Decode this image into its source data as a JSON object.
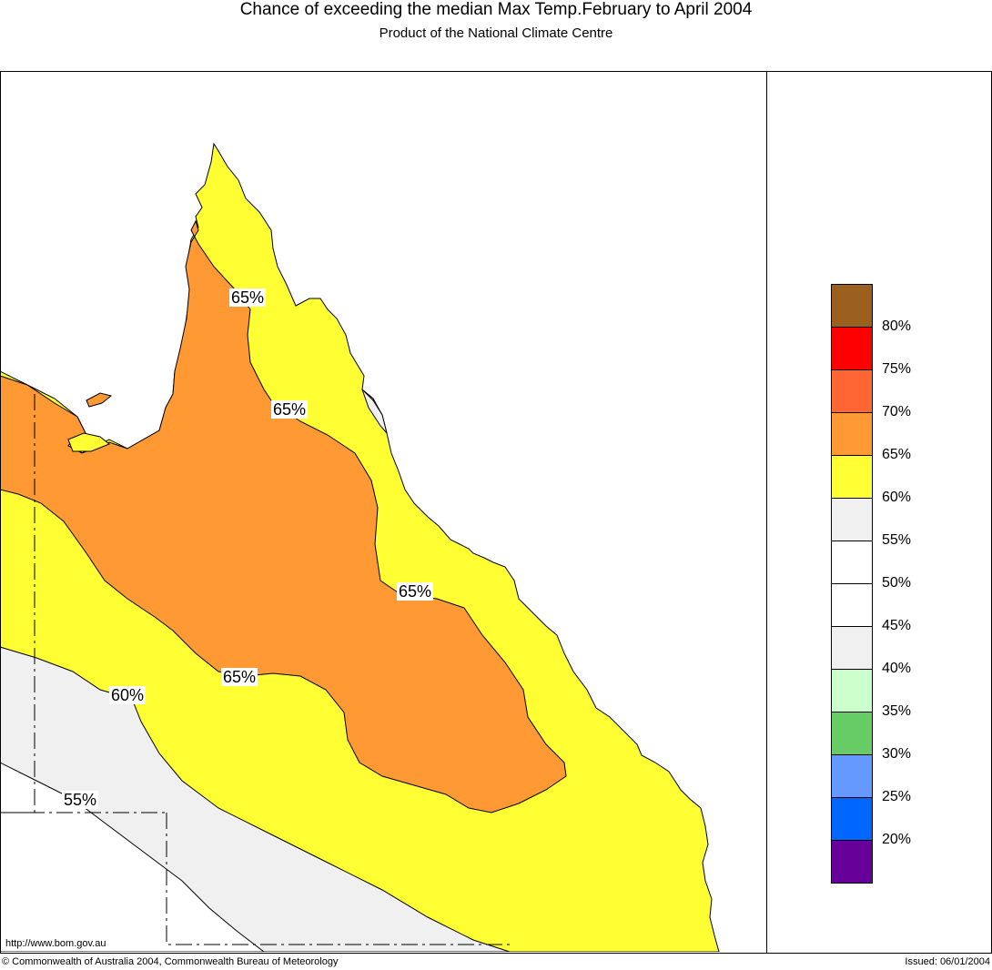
{
  "header": {
    "title": "Chance of exceeding the median Max Temp.February to April 2004",
    "subtitle": "Product of the National Climate Centre"
  },
  "map": {
    "region": "Queensland",
    "contour_labels": [
      "65%",
      "65%",
      "65%",
      "65%",
      "60%",
      "55%"
    ],
    "url": "http://www.bom.gov.au"
  },
  "legend": {
    "items": [
      {
        "color": "#9B5F1E",
        "label": ""
      },
      {
        "color": "#FF0000",
        "label": "80%"
      },
      {
        "color": "#FF6633",
        "label": "75%"
      },
      {
        "color": "#FF9933",
        "label": "70%"
      },
      {
        "color": "#FFFF33",
        "label": "65%"
      },
      {
        "color": "#F0F0F0",
        "label": "60%"
      },
      {
        "color": "#FFFFFF",
        "label": "55%"
      },
      {
        "color": "#FFFFFF",
        "label": "50%"
      },
      {
        "color": "#F0F0F0",
        "label": "45%"
      },
      {
        "color": "#CCFFCC",
        "label": "40%"
      },
      {
        "color": "#66CC66",
        "label": "35%"
      },
      {
        "color": "#6699FF",
        "label": "30%"
      },
      {
        "color": "#0066FF",
        "label": "25%"
      },
      {
        "color": "#660099",
        "label": "20%"
      }
    ]
  },
  "footer": {
    "copyright": "© Commonwealth of Australia 2004, Commonwealth Bureau of Meteorology",
    "issued": "Issued: 06/01/2004"
  }
}
